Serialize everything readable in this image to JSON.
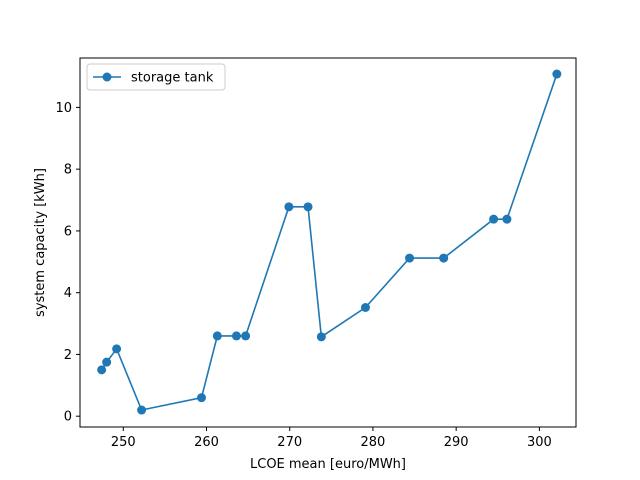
{
  "chart_data": {
    "type": "line",
    "xlabel": "LCOE mean [euro/MWh]",
    "ylabel": "system capacity [kWh]",
    "xlim": [
      244.8,
      304.4
    ],
    "ylim": [
      -0.35,
      11.6
    ],
    "xticks": [
      250,
      260,
      270,
      280,
      290,
      300
    ],
    "yticks": [
      0,
      2,
      4,
      6,
      8,
      10
    ],
    "grid": false,
    "legend_position": "top-left",
    "series": [
      {
        "name": "storage tank",
        "color": "#1f77b4",
        "marker": "circle",
        "x": [
          247.4,
          248.0,
          249.2,
          252.2,
          259.4,
          261.3,
          263.6,
          264.7,
          269.9,
          272.2,
          273.8,
          279.1,
          284.4,
          288.5,
          294.5,
          296.1,
          302.1
        ],
        "y": [
          1.5,
          1.75,
          2.18,
          0.2,
          0.6,
          2.6,
          2.6,
          2.6,
          6.78,
          6.78,
          2.57,
          3.52,
          5.12,
          5.12,
          6.38,
          6.38,
          11.08
        ]
      }
    ]
  }
}
